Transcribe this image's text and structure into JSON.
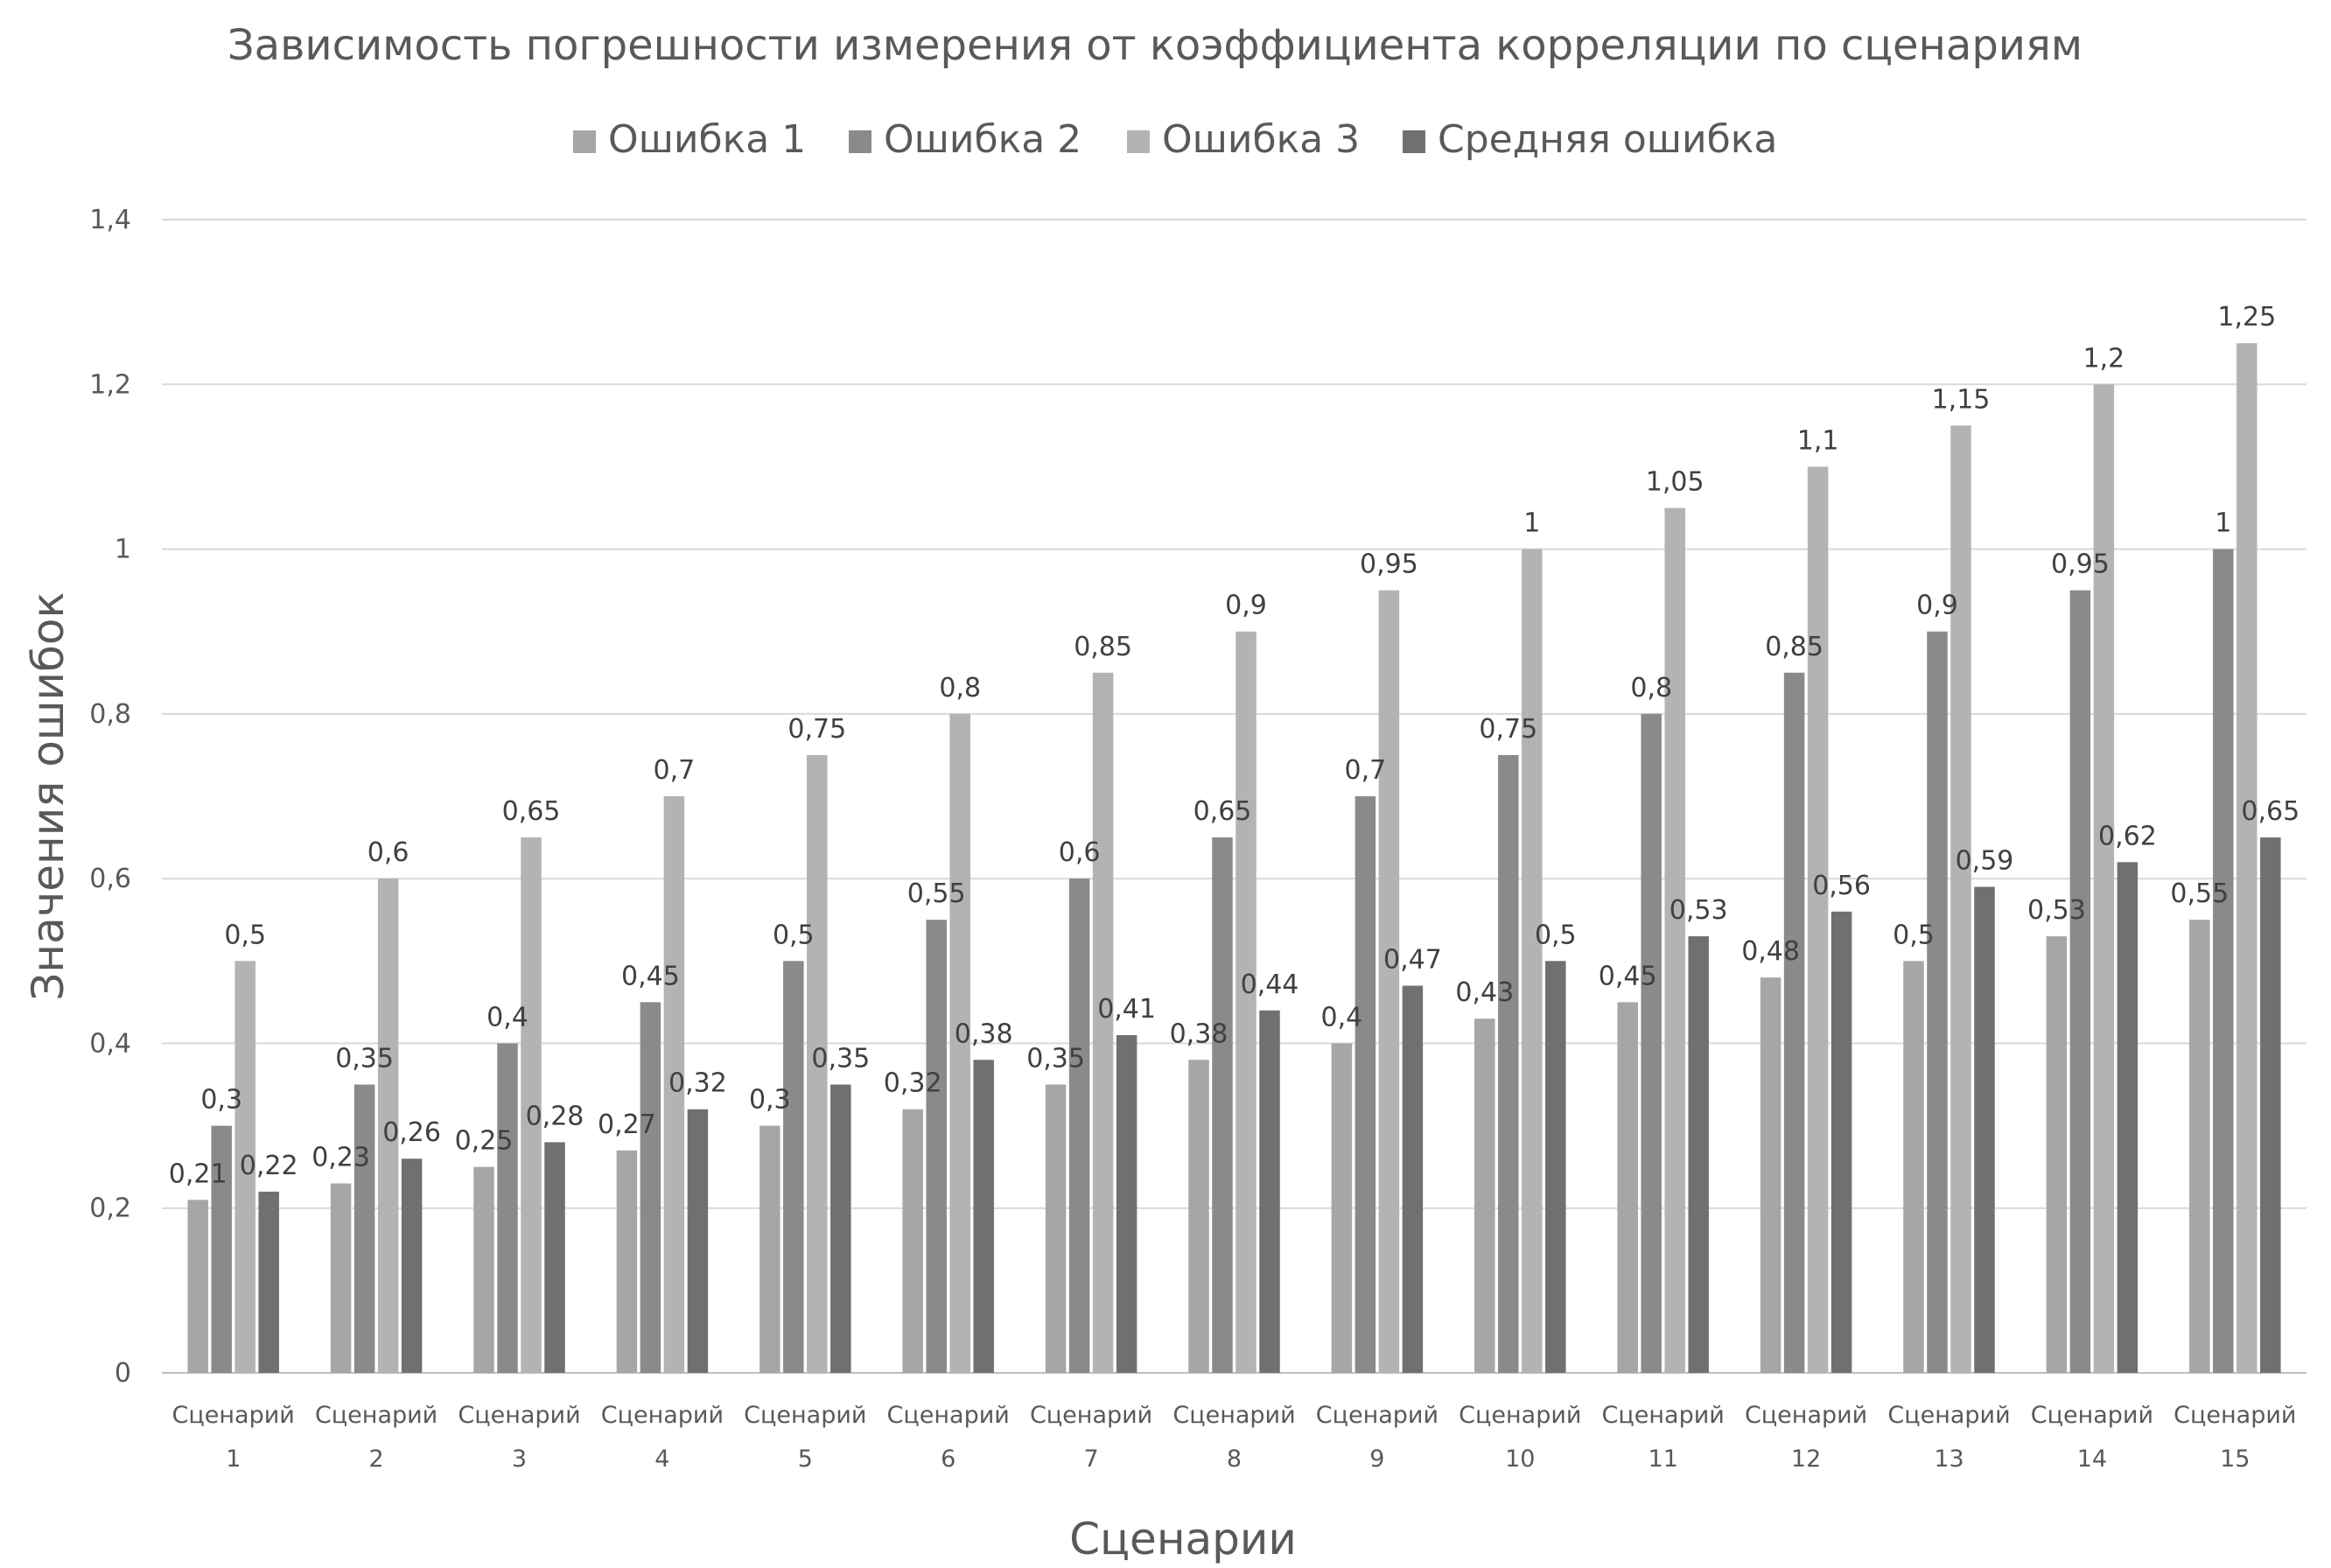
{
  "chart_data": {
    "type": "bar",
    "title": "Зависимость погрешности измерения от коэффициента корреляции по сценариям",
    "xlabel": "Сценарии",
    "ylabel": "Значения ошибок",
    "ylim": [
      0,
      1.4
    ],
    "yticks": [
      "0",
      "0,2",
      "0,4",
      "0,6",
      "0,8",
      "1",
      "1,2",
      "1,4"
    ],
    "ytick_values": [
      0,
      0.2,
      0.4,
      0.6,
      0.8,
      1.0,
      1.2,
      1.4
    ],
    "grid": true,
    "legend_position": "top",
    "categories": [
      [
        "Сценарий",
        "1"
      ],
      [
        "Сценарий",
        "2"
      ],
      [
        "Сценарий",
        "3"
      ],
      [
        "Сценарий",
        "4"
      ],
      [
        "Сценарий",
        "5"
      ],
      [
        "Сценарий",
        "6"
      ],
      [
        "Сценарий",
        "7"
      ],
      [
        "Сценарий",
        "8"
      ],
      [
        "Сценарий",
        "9"
      ],
      [
        "Сценарий",
        "10"
      ],
      [
        "Сценарий",
        "11"
      ],
      [
        "Сценарий",
        "12"
      ],
      [
        "Сценарий",
        "13"
      ],
      [
        "Сценарий",
        "14"
      ],
      [
        "Сценарий",
        "15"
      ]
    ],
    "series": [
      {
        "name": "Ошибка 1",
        "color": "#a6a6a6",
        "values": [
          0.21,
          0.23,
          0.25,
          0.27,
          0.3,
          0.32,
          0.35,
          0.38,
          0.4,
          0.43,
          0.45,
          0.48,
          0.5,
          0.53,
          0.55
        ],
        "labels": [
          "0,21",
          "0,23",
          "0,25",
          "0,27",
          "0,3",
          "0,32",
          "0,35",
          "0,38",
          "0,4",
          "0,43",
          "0,45",
          "0,48",
          "0,5",
          "0,53",
          "0,55"
        ]
      },
      {
        "name": "Ошибка 2",
        "color": "#8a8a8a",
        "values": [
          0.3,
          0.35,
          0.4,
          0.45,
          0.5,
          0.55,
          0.6,
          0.65,
          0.7,
          0.75,
          0.8,
          0.85,
          0.9,
          0.95,
          1.0
        ],
        "labels": [
          "0,3",
          "0,35",
          "0,4",
          "0,45",
          "0,5",
          "0,55",
          "0,6",
          "0,65",
          "0,7",
          "0,75",
          "0,8",
          "0,85",
          "0,9",
          "0,95",
          "1"
        ]
      },
      {
        "name": "Ошибка 3",
        "color": "#b3b3b3",
        "values": [
          0.5,
          0.6,
          0.65,
          0.7,
          0.75,
          0.8,
          0.85,
          0.9,
          0.95,
          1.0,
          1.05,
          1.1,
          1.15,
          1.2,
          1.25
        ],
        "labels": [
          "0,5",
          "0,6",
          "0,65",
          "0,7",
          "0,75",
          "0,8",
          "0,85",
          "0,9",
          "0,95",
          "1",
          "1,05",
          "1,1",
          "1,15",
          "1,2",
          "1,25"
        ]
      },
      {
        "name": "Средняя ошибка",
        "color": "#707070",
        "values": [
          0.22,
          0.26,
          0.28,
          0.32,
          0.35,
          0.38,
          0.41,
          0.44,
          0.47,
          0.5,
          0.53,
          0.56,
          0.59,
          0.62,
          0.65
        ],
        "labels": [
          "0,22",
          "0,26",
          "0,28",
          "0,32",
          "0,35",
          "0,38",
          "0,41",
          "0,44",
          "0,47",
          "0,5",
          "0,53",
          "0,56",
          "0,59",
          "0,62",
          "0,65"
        ]
      }
    ]
  }
}
